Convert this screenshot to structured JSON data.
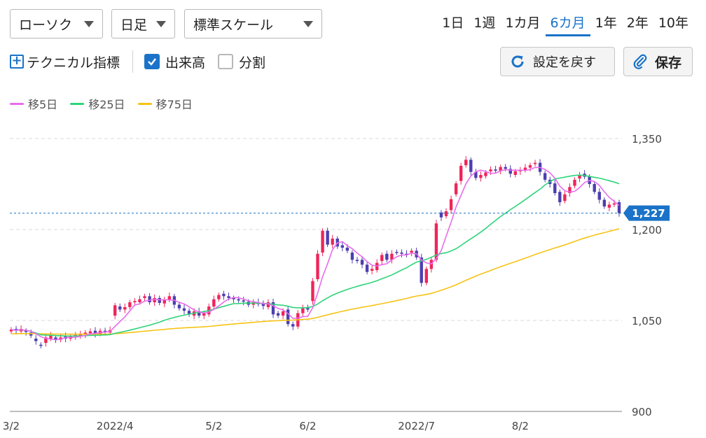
{
  "controls": {
    "chart_type": "ローソク",
    "period_type": "日足",
    "scale": "標準スケール",
    "ranges": [
      "1日",
      "1週",
      "1カ月",
      "6カ月",
      "1年",
      "2年",
      "10年"
    ],
    "active_range": "6カ月",
    "technical_label": "テクニカル指標",
    "volume_label": "出来高",
    "volume_checked": true,
    "split_label": "分割",
    "split_checked": false,
    "reset_label": "設定を戻す",
    "save_label": "保存"
  },
  "colors": {
    "accent": "#1a73c8",
    "up": "#f0245a",
    "down": "#4b3fb0",
    "ma5": "#e86cec",
    "ma25": "#2fd47a",
    "ma75": "#f6c315"
  },
  "chart_data": {
    "type": "candlestick",
    "ylim": [
      900,
      1350
    ],
    "yticks": [
      900,
      1050,
      1200,
      1350
    ],
    "ytick_labels": [
      "900",
      "1,050",
      "1,200",
      "1,350"
    ],
    "xtick_labels": [
      {
        "label": "3/2",
        "index": 0
      },
      {
        "label": "2022/4",
        "index": 21
      },
      {
        "label": "5/2",
        "index": 41
      },
      {
        "label": "6/2",
        "index": 60
      },
      {
        "label": "2022/7",
        "index": 82
      },
      {
        "label": "8/2",
        "index": 103
      }
    ],
    "last_price": 1227,
    "last_price_label": "1,227",
    "legend": [
      {
        "name": "移5日",
        "color": "#e86cec"
      },
      {
        "name": "移25日",
        "color": "#2fd47a"
      },
      {
        "name": "移75日",
        "color": "#f6c315"
      }
    ],
    "closes": [
      1035,
      1033,
      1036,
      1031,
      1025,
      1016,
      1008,
      1022,
      1025,
      1019,
      1022,
      1020,
      1024,
      1026,
      1027,
      1030,
      1032,
      1028,
      1033,
      1031,
      1034,
      1075,
      1068,
      1072,
      1080,
      1082,
      1085,
      1090,
      1080,
      1087,
      1079,
      1084,
      1090,
      1076,
      1070,
      1066,
      1060,
      1065,
      1058,
      1062,
      1073,
      1085,
      1092,
      1090,
      1087,
      1085,
      1083,
      1081,
      1076,
      1080,
      1077,
      1074,
      1080,
      1060,
      1058,
      1065,
      1044,
      1040,
      1062,
      1070,
      1068,
      1115,
      1160,
      1198,
      1175,
      1185,
      1172,
      1170,
      1165,
      1150,
      1148,
      1142,
      1130,
      1135,
      1145,
      1158,
      1150,
      1160,
      1162,
      1160,
      1158,
      1165,
      1154,
      1112,
      1135,
      1150,
      1210,
      1220,
      1230,
      1250,
      1276,
      1305,
      1315,
      1295,
      1285,
      1290,
      1294,
      1299,
      1297,
      1303,
      1300,
      1292,
      1296,
      1298,
      1302,
      1306,
      1310,
      1295,
      1282,
      1275,
      1260,
      1245,
      1258,
      1270,
      1282,
      1290,
      1287,
      1275,
      1262,
      1249,
      1238,
      1241,
      1243,
      1227
    ],
    "opens": [
      1032,
      1036,
      1032,
      1033,
      1030,
      1020,
      1010,
      1013,
      1020,
      1022,
      1018,
      1024,
      1020,
      1024,
      1024,
      1027,
      1029,
      1033,
      1028,
      1033,
      1030,
      1058,
      1073,
      1068,
      1072,
      1080,
      1080,
      1087,
      1090,
      1080,
      1087,
      1078,
      1084,
      1090,
      1076,
      1070,
      1066,
      1058,
      1065,
      1058,
      1060,
      1073,
      1085,
      1094,
      1090,
      1087,
      1085,
      1083,
      1081,
      1076,
      1080,
      1079,
      1072,
      1080,
      1062,
      1058,
      1068,
      1044,
      1040,
      1062,
      1072,
      1082,
      1118,
      1162,
      1198,
      1175,
      1185,
      1174,
      1170,
      1162,
      1150,
      1150,
      1142,
      1132,
      1133,
      1148,
      1160,
      1150,
      1163,
      1162,
      1160,
      1162,
      1165,
      1154,
      1112,
      1135,
      1150,
      1228,
      1222,
      1232,
      1258,
      1280,
      1306,
      1315,
      1295,
      1285,
      1288,
      1296,
      1299,
      1297,
      1303,
      1300,
      1290,
      1296,
      1298,
      1302,
      1308,
      1310,
      1293,
      1282,
      1276,
      1262,
      1247,
      1260,
      1272,
      1284,
      1292,
      1287,
      1275,
      1262,
      1249,
      1236,
      1241,
      1245
    ]
  }
}
